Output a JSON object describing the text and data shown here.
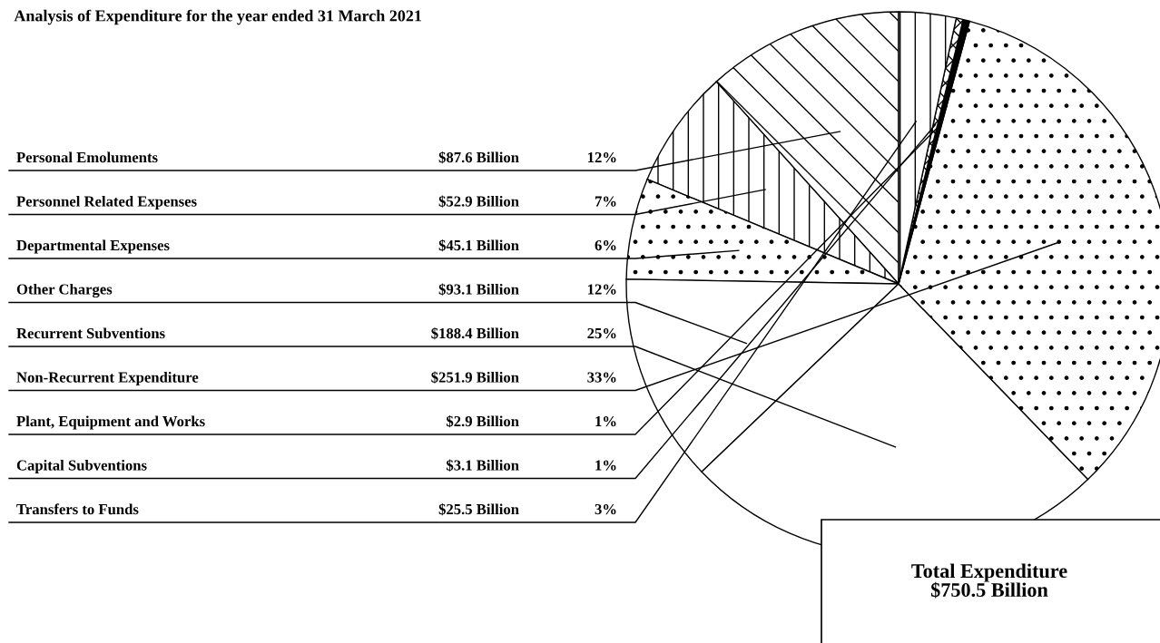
{
  "chart_data": {
    "type": "pie",
    "title": "Analysis of Expenditure for the year ended 31 March 2021",
    "categories": [
      "Personal Emoluments",
      "Personnel Related Expenses",
      "Departmental Expenses",
      "Other Charges",
      "Recurrent Subventions",
      "Non-Recurrent Expenditure",
      "Plant, Equipment and Works",
      "Capital Subventions",
      "Transfers to Funds"
    ],
    "values": [
      87.6,
      52.9,
      45.1,
      93.1,
      188.4,
      251.9,
      2.9,
      3.1,
      25.5
    ],
    "value_labels": [
      "$87.6 Billion",
      "$52.9 Billion",
      "$45.1 Billion",
      "$93.1 Billion",
      "$188.4 Billion",
      "$251.9 Billion",
      "$2.9 Billion",
      "$3.1 Billion",
      "$25.5 Billion"
    ],
    "colors": [
      "#ffffff",
      "#ffffff",
      "#ffffff",
      "#ffffff",
      "#ffffff",
      "#ffffff",
      "#000000",
      "#ffffff",
      "#ffffff"
    ],
    "annotations": [
      {
        "text": "12%",
        "x": "Personal Emoluments"
      },
      {
        "text": "7%",
        "x": "Personnel Related Expenses"
      },
      {
        "text": "6%",
        "x": "Departmental Expenses"
      },
      {
        "text": "12%",
        "x": "Other Charges"
      },
      {
        "text": "25%",
        "x": "Recurrent Subventions"
      },
      {
        "text": "33%",
        "x": "Non-Recurrent Expenditure"
      },
      {
        "text": "1%",
        "x": "Plant, Equipment and Works"
      },
      {
        "text": "1%",
        "x": "Capital Subventions"
      },
      {
        "text": "3%",
        "x": "Transfers to Funds"
      },
      "Total Expenditure\n$750.5 Billion"
    ],
    "legend": false
  }
}
